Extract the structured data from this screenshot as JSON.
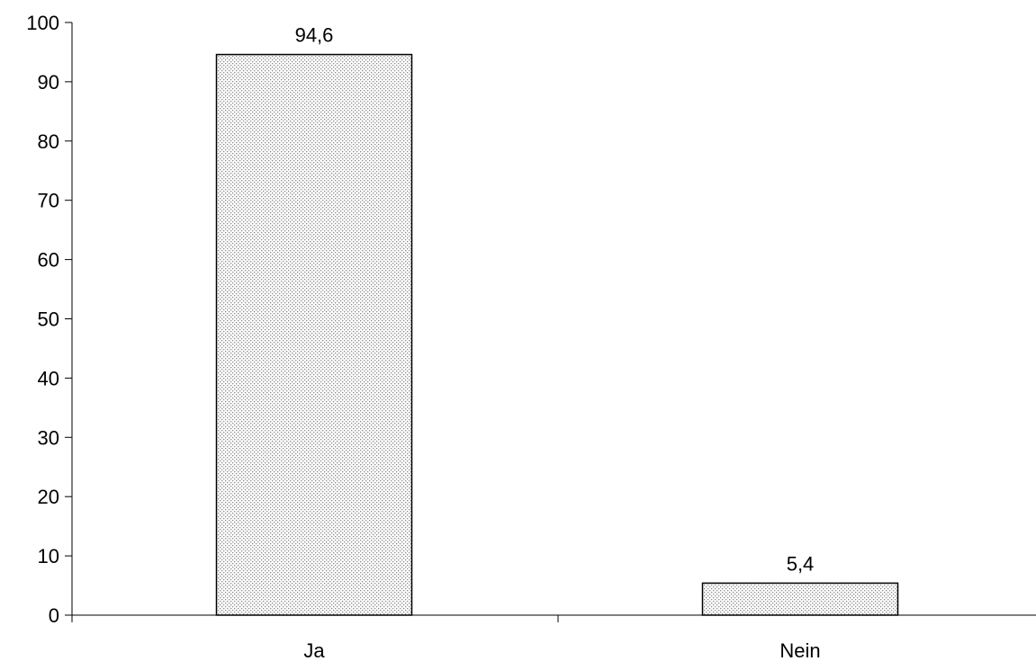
{
  "chart_data": {
    "type": "bar",
    "categories": [
      "Ja",
      "Nein"
    ],
    "values": [
      94.6,
      5.4
    ],
    "data_labels": [
      "94,6",
      "5,4"
    ],
    "ylim": [
      0,
      100
    ],
    "yticks": [
      0,
      10,
      20,
      30,
      40,
      50,
      60,
      70,
      80,
      90,
      100
    ],
    "ytick_labels": [
      "0",
      "10",
      "20",
      "30",
      "40",
      "50",
      "60",
      "70",
      "80",
      "90",
      "100"
    ],
    "title": "",
    "xlabel": "",
    "ylabel": "",
    "grid": false,
    "legend": "none",
    "colors": {
      "bar_fill_base": "#ffffff",
      "bar_pattern_dot": "#8a8a8a",
      "bar_stroke": "#000000",
      "axis": "#000000"
    }
  }
}
